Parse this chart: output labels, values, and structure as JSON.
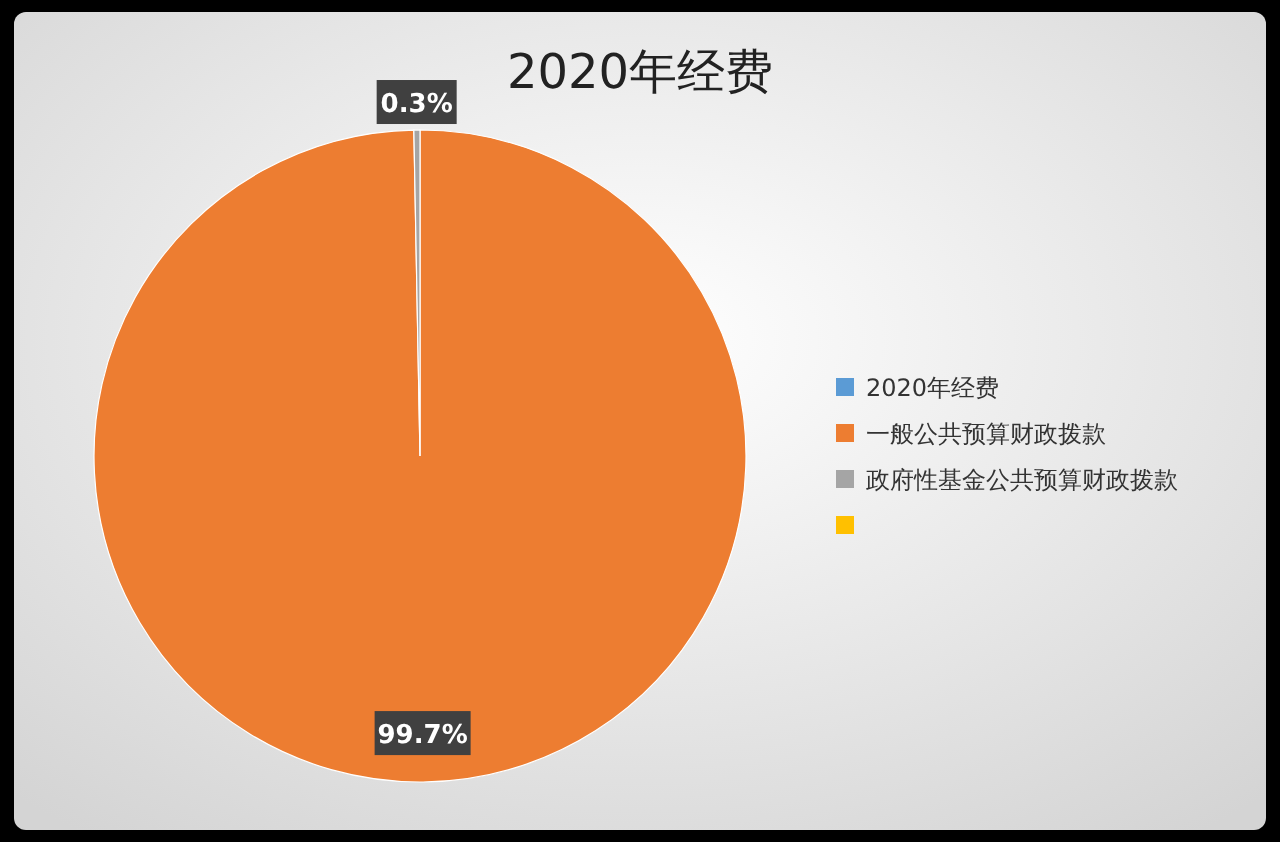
{
  "chart_data": {
    "type": "pie",
    "title": "2020年经费",
    "categories": [
      "2020年经费",
      "一般公共预算财政拨款",
      "政府性基金公共预算财政拨款",
      null
    ],
    "values": [
      0,
      99.7,
      0.3,
      0
    ],
    "value_labels": [
      null,
      "99.7%",
      "0.3%",
      null
    ],
    "colors": [
      "#5b9bd5",
      "#ed7d31",
      "#a5a5a5",
      "#ffc000"
    ],
    "legend": "right"
  }
}
